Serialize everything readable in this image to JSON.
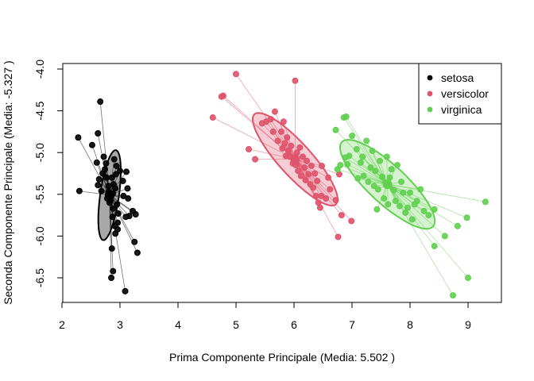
{
  "chart_data": {
    "type": "scatter",
    "title": "",
    "xlabel": "Prima Componente Principale (Media: 5.502 )",
    "ylabel": "Seconda Componente Principale (Media: -5.327 )",
    "xlim": [
      2,
      9.5
    ],
    "ylim": [
      -6.75,
      -4.0
    ],
    "x_ticks": [
      "2",
      "3",
      "4",
      "5",
      "6",
      "7",
      "8",
      "9"
    ],
    "y_ticks": [
      "-4.0",
      "-4.5",
      "-5.0",
      "-5.5",
      "-6.0",
      "-6.5"
    ],
    "grid": false,
    "legend_position": "top-right",
    "series": [
      {
        "name": "setosa",
        "color": "#000000",
        "fill": "#999999",
        "centroid": [
          2.82,
          -5.51
        ],
        "ellipse": {
          "center": [
            2.82,
            -5.51
          ],
          "semi_major": 0.55,
          "semi_minor": 0.16,
          "angle_deg": 78
        },
        "points": [
          [
            2.28,
            -4.82
          ],
          [
            2.3,
            -5.46
          ],
          [
            2.52,
            -4.91
          ],
          [
            2.62,
            -4.77
          ],
          [
            2.66,
            -4.39
          ],
          [
            2.6,
            -5.12
          ],
          [
            2.64,
            -5.32
          ],
          [
            2.62,
            -5.39
          ],
          [
            2.68,
            -5.46
          ],
          [
            2.7,
            -5.25
          ],
          [
            2.72,
            -5.05
          ],
          [
            2.74,
            -5.2
          ],
          [
            2.76,
            -5.13
          ],
          [
            2.77,
            -5.3
          ],
          [
            2.78,
            -5.55
          ],
          [
            2.8,
            -5.47
          ],
          [
            2.8,
            -5.4
          ],
          [
            2.82,
            -5.6
          ],
          [
            2.84,
            -5.57
          ],
          [
            2.85,
            -5.52
          ],
          [
            2.86,
            -5.3
          ],
          [
            2.87,
            -5.77
          ],
          [
            2.88,
            -5.67
          ],
          [
            2.88,
            -5.49
          ],
          [
            2.89,
            -5.38
          ],
          [
            2.9,
            -5.08
          ],
          [
            2.91,
            -5.88
          ],
          [
            2.92,
            -5.43
          ],
          [
            2.92,
            -5.97
          ],
          [
            2.93,
            -5.26
          ],
          [
            2.94,
            -5.16
          ],
          [
            2.95,
            -5.62
          ],
          [
            2.96,
            -5.84
          ],
          [
            2.96,
            -5.92
          ],
          [
            2.97,
            -5.73
          ],
          [
            3.0,
            -5.22
          ],
          [
            3.05,
            -5.34
          ],
          [
            3.06,
            -5.52
          ],
          [
            3.1,
            -5.77
          ],
          [
            3.11,
            -5.23
          ],
          [
            3.13,
            -5.43
          ],
          [
            3.14,
            -5.55
          ],
          [
            3.16,
            -5.76
          ],
          [
            3.22,
            -5.7
          ],
          [
            3.25,
            -6.07
          ],
          [
            3.27,
            -5.74
          ],
          [
            2.86,
            -6.15
          ],
          [
            2.88,
            -6.42
          ],
          [
            2.85,
            -6.5
          ],
          [
            3.09,
            -6.66
          ],
          [
            3.3,
            -6.2
          ]
        ]
      },
      {
        "name": "versicolor",
        "color": "#DF536B",
        "fill": "#F3C4CD",
        "centroid": [
          6.02,
          -5.08
        ],
        "ellipse": {
          "center": [
            6.02,
            -5.08
          ],
          "semi_major": 0.89,
          "semi_minor": 0.23,
          "angle_deg": -36
        },
        "points": [
          [
            5.0,
            -4.06
          ],
          [
            4.75,
            -4.33
          ],
          [
            4.78,
            -4.32
          ],
          [
            4.6,
            -4.58
          ],
          [
            5.22,
            -4.96
          ],
          [
            5.33,
            -5.08
          ],
          [
            5.45,
            -4.65
          ],
          [
            5.52,
            -4.63
          ],
          [
            5.6,
            -4.6
          ],
          [
            5.67,
            -4.51
          ],
          [
            5.64,
            -4.75
          ],
          [
            5.72,
            -4.86
          ],
          [
            5.78,
            -4.75
          ],
          [
            5.8,
            -4.95
          ],
          [
            5.82,
            -4.63
          ],
          [
            5.84,
            -4.89
          ],
          [
            5.86,
            -5.04
          ],
          [
            5.88,
            -4.82
          ],
          [
            5.9,
            -4.98
          ],
          [
            5.93,
            -5.05
          ],
          [
            5.95,
            -4.92
          ],
          [
            5.98,
            -5.13
          ],
          [
            6.02,
            -4.14
          ],
          [
            6.03,
            -5.15
          ],
          [
            6.05,
            -5.0
          ],
          [
            6.07,
            -5.22
          ],
          [
            6.1,
            -4.94
          ],
          [
            6.12,
            -5.28
          ],
          [
            6.15,
            -5.05
          ],
          [
            6.18,
            -5.18
          ],
          [
            6.2,
            -5.33
          ],
          [
            6.22,
            -5.1
          ],
          [
            6.25,
            -5.26
          ],
          [
            6.28,
            -5.38
          ],
          [
            6.3,
            -5.16
          ],
          [
            6.33,
            -5.42
          ],
          [
            6.36,
            -5.25
          ],
          [
            6.38,
            -5.52
          ],
          [
            6.4,
            -5.34
          ],
          [
            6.42,
            -5.6
          ],
          [
            6.45,
            -5.66
          ],
          [
            6.47,
            -5.52
          ],
          [
            6.48,
            -5.16
          ],
          [
            6.55,
            -5.55
          ],
          [
            6.59,
            -5.3
          ],
          [
            6.62,
            -5.44
          ],
          [
            6.72,
            -5.57
          ],
          [
            6.76,
            -6.01
          ],
          [
            6.78,
            -5.26
          ],
          [
            6.82,
            -5.75
          ],
          [
            6.99,
            -5.82
          ]
        ]
      },
      {
        "name": "virginica",
        "color": "#61D04F",
        "fill": "#D0F0C9",
        "centroid": [
          7.61,
          -5.38
        ],
        "ellipse": {
          "center": [
            7.61,
            -5.38
          ],
          "semi_major": 0.94,
          "semi_minor": 0.26,
          "angle_deg": -31
        },
        "points": [
          [
            6.72,
            -4.73
          ],
          [
            6.86,
            -4.58
          ],
          [
            6.9,
            -4.57
          ],
          [
            6.75,
            -5.2
          ],
          [
            6.8,
            -5.15
          ],
          [
            6.88,
            -5.06
          ],
          [
            6.92,
            -5.14
          ],
          [
            6.95,
            -5.04
          ],
          [
            7.0,
            -4.8
          ],
          [
            7.08,
            -4.96
          ],
          [
            7.1,
            -5.31
          ],
          [
            7.15,
            -5.12
          ],
          [
            7.18,
            -5.05
          ],
          [
            7.2,
            -5.28
          ],
          [
            7.25,
            -4.86
          ],
          [
            7.28,
            -5.35
          ],
          [
            7.32,
            -5.18
          ],
          [
            7.35,
            -4.98
          ],
          [
            7.38,
            -5.4
          ],
          [
            7.4,
            -5.22
          ],
          [
            7.43,
            -5.68
          ],
          [
            7.45,
            -5.44
          ],
          [
            7.48,
            -5.1
          ],
          [
            7.52,
            -5.29
          ],
          [
            7.55,
            -5.55
          ],
          [
            7.58,
            -5.36
          ],
          [
            7.6,
            -5.05
          ],
          [
            7.62,
            -5.62
          ],
          [
            7.65,
            -5.3
          ],
          [
            7.68,
            -5.2
          ],
          [
            7.72,
            -5.45
          ],
          [
            7.75,
            -5.58
          ],
          [
            7.78,
            -5.15
          ],
          [
            7.82,
            -5.64
          ],
          [
            7.85,
            -5.35
          ],
          [
            7.88,
            -5.48
          ],
          [
            7.92,
            -5.72
          ],
          [
            7.96,
            -5.66
          ],
          [
            8.0,
            -5.48
          ],
          [
            8.04,
            -5.8
          ],
          [
            8.08,
            -5.62
          ],
          [
            8.12,
            -5.58
          ],
          [
            8.18,
            -5.44
          ],
          [
            8.24,
            -5.7
          ],
          [
            8.32,
            -5.75
          ],
          [
            8.42,
            -5.68
          ],
          [
            8.42,
            -6.12
          ],
          [
            8.6,
            -6.0
          ],
          [
            8.82,
            -5.88
          ],
          [
            8.98,
            -5.78
          ],
          [
            9.3,
            -5.59
          ],
          [
            9.0,
            -6.5
          ],
          [
            8.74,
            -6.71
          ]
        ]
      }
    ]
  }
}
